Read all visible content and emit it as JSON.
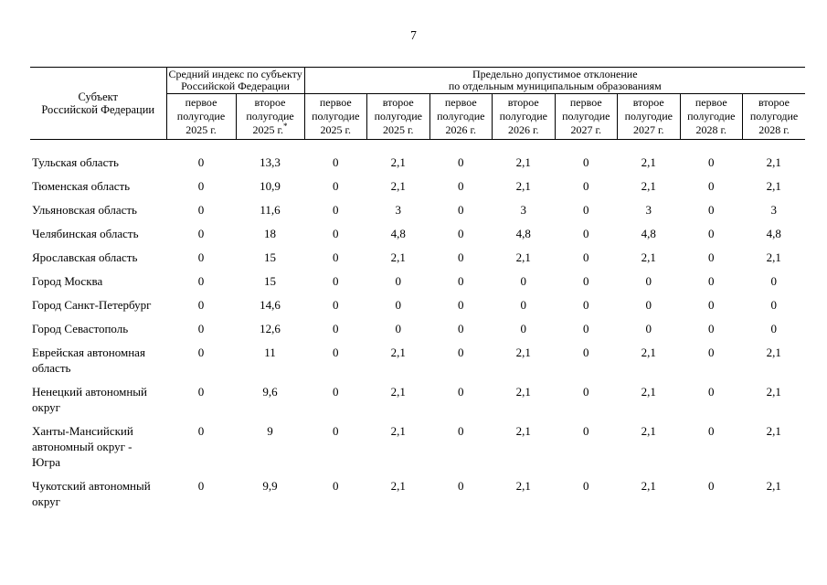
{
  "page": {
    "number": "7"
  },
  "table": {
    "header": {
      "subject": {
        "line1": "Субъект",
        "line2": "Российской Федерации"
      },
      "group1": {
        "line1": "Средний индекс по субъекту",
        "line2": "Российской Федерации"
      },
      "group2": {
        "line1": "Предельно допустимое отклонение",
        "line2": "по отдельным муниципальным образованиям"
      },
      "periods": [
        {
          "label": "первое полугодие 2025 г."
        },
        {
          "label": "второе полугодие 2025 г.",
          "sup": "*"
        },
        {
          "label": "первое полугодие 2025 г."
        },
        {
          "label": "второе полугодие 2025 г."
        },
        {
          "label": "первое полугодие 2026 г."
        },
        {
          "label": "второе полугодие 2026 г."
        },
        {
          "label": "первое полугодие 2027 г."
        },
        {
          "label": "второе полугодие 2027 г."
        },
        {
          "label": "первое полугодие 2028 г."
        },
        {
          "label": "второе полугодие 2028 г."
        }
      ]
    },
    "rows": [
      {
        "name": "Тульская область",
        "values": [
          "0",
          "13,3",
          "0",
          "2,1",
          "0",
          "2,1",
          "0",
          "2,1",
          "0",
          "2,1"
        ]
      },
      {
        "name": "Тюменская область",
        "values": [
          "0",
          "10,9",
          "0",
          "2,1",
          "0",
          "2,1",
          "0",
          "2,1",
          "0",
          "2,1"
        ]
      },
      {
        "name": "Ульяновская область",
        "values": [
          "0",
          "11,6",
          "0",
          "3",
          "0",
          "3",
          "0",
          "3",
          "0",
          "3"
        ]
      },
      {
        "name": "Челябинская область",
        "values": [
          "0",
          "18",
          "0",
          "4,8",
          "0",
          "4,8",
          "0",
          "4,8",
          "0",
          "4,8"
        ]
      },
      {
        "name": "Ярославская область",
        "values": [
          "0",
          "15",
          "0",
          "2,1",
          "0",
          "2,1",
          "0",
          "2,1",
          "0",
          "2,1"
        ]
      },
      {
        "name": "Город Москва",
        "values": [
          "0",
          "15",
          "0",
          "0",
          "0",
          "0",
          "0",
          "0",
          "0",
          "0"
        ]
      },
      {
        "name": "Город Санкт-Петербург",
        "values": [
          "0",
          "14,6",
          "0",
          "0",
          "0",
          "0",
          "0",
          "0",
          "0",
          "0"
        ]
      },
      {
        "name": "Город Севастополь",
        "values": [
          "0",
          "12,6",
          "0",
          "0",
          "0",
          "0",
          "0",
          "0",
          "0",
          "0"
        ]
      },
      {
        "name": "Еврейская автономная область",
        "values": [
          "0",
          "11",
          "0",
          "2,1",
          "0",
          "2,1",
          "0",
          "2,1",
          "0",
          "2,1"
        ]
      },
      {
        "name": "Ненецкий автономный округ",
        "values": [
          "0",
          "9,6",
          "0",
          "2,1",
          "0",
          "2,1",
          "0",
          "2,1",
          "0",
          "2,1"
        ]
      },
      {
        "name": "Ханты-Мансийский автономный округ - Югра",
        "values": [
          "0",
          "9",
          "0",
          "2,1",
          "0",
          "2,1",
          "0",
          "2,1",
          "0",
          "2,1"
        ]
      },
      {
        "name": "Чукотский автономный округ",
        "values": [
          "0",
          "9,9",
          "0",
          "2,1",
          "0",
          "2,1",
          "0",
          "2,1",
          "0",
          "2,1"
        ]
      }
    ]
  }
}
